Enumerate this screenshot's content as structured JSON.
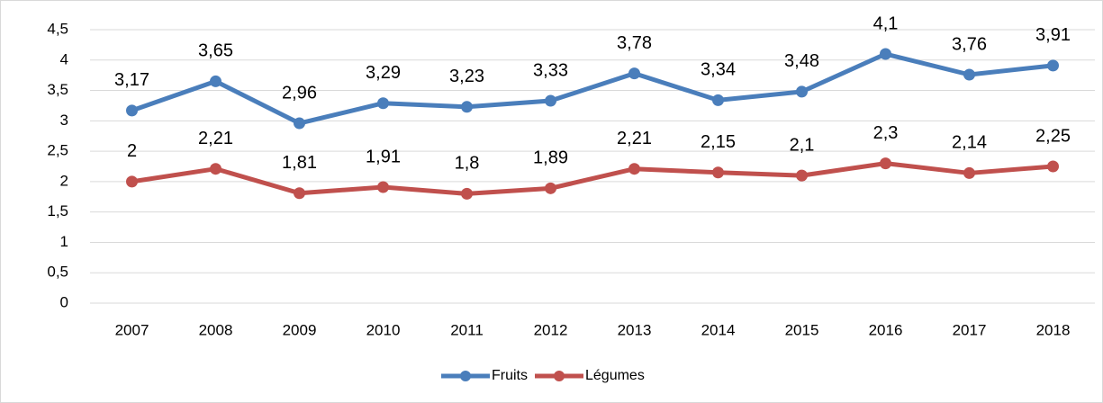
{
  "chart_data": {
    "type": "line",
    "categories": [
      "2007",
      "2008",
      "2009",
      "2010",
      "2011",
      "2012",
      "2013",
      "2014",
      "2015",
      "2016",
      "2017",
      "2018"
    ],
    "series": [
      {
        "name": "Fruits",
        "color": "#4a7ebb",
        "values": [
          3.17,
          3.65,
          2.96,
          3.29,
          3.23,
          3.33,
          3.78,
          3.34,
          3.48,
          4.1,
          3.76,
          3.91
        ],
        "value_labels": [
          "3,17",
          "3,65",
          "2,96",
          "3,29",
          "3,23",
          "3,33",
          "3,78",
          "3,34",
          "3,48",
          "4,1",
          "3,76",
          "3,91"
        ]
      },
      {
        "name": "Légumes",
        "color": "#c0504d",
        "values": [
          2,
          2.21,
          1.81,
          1.91,
          1.8,
          1.89,
          2.21,
          2.15,
          2.1,
          2.3,
          2.14,
          2.25
        ],
        "value_labels": [
          "2",
          "2,21",
          "1,81",
          "1,91",
          "1,8",
          "1,89",
          "2,21",
          "2,15",
          "2,1",
          "2,3",
          "2,14",
          "2,25"
        ]
      }
    ],
    "ylim": [
      0,
      4.5
    ],
    "yticks": [
      0,
      {
        "value": 0.5,
        "label": "0,5"
      },
      1,
      {
        "value": 1.5,
        "label": "1,5"
      },
      2,
      {
        "value": 2.5,
        "label": "2,5"
      },
      3,
      {
        "value": 3.5,
        "label": "3,5"
      },
      4,
      {
        "value": 4.5,
        "label": "4,5"
      }
    ],
    "grid": true,
    "legend": "bottom"
  }
}
